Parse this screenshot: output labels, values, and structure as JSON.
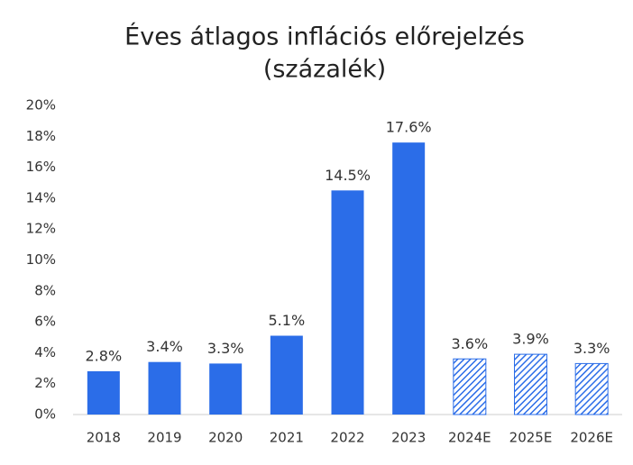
{
  "chart_data": {
    "type": "bar",
    "title": "Éves átlagos inflációs előrejelzés",
    "subtitle": "(százalék)",
    "categories": [
      "2018",
      "2019",
      "2020",
      "2021",
      "2022",
      "2023",
      "2024E",
      "2025E",
      "2026E"
    ],
    "values": [
      2.8,
      3.4,
      3.3,
      5.1,
      14.5,
      17.6,
      3.6,
      3.9,
      3.3
    ],
    "value_labels": [
      "2.8%",
      "3.4%",
      "3.3%",
      "5.1%",
      "14.5%",
      "17.6%",
      "3.6%",
      "3.9%",
      "3.3%"
    ],
    "hatched": [
      false,
      false,
      false,
      false,
      false,
      false,
      true,
      true,
      true
    ],
    "color": "#2b6de8",
    "ylim": [
      0,
      20
    ],
    "yticks": [
      {
        "value": 0,
        "label": "0%"
      },
      {
        "value": 2,
        "label": "2%"
      },
      {
        "value": 4,
        "label": "4%"
      },
      {
        "value": 6,
        "label": "6%"
      },
      {
        "value": 8,
        "label": "8%"
      },
      {
        "value": 10,
        "label": "10%"
      },
      {
        "value": 12,
        "label": "12%"
      },
      {
        "value": 14,
        "label": "14%"
      },
      {
        "value": 16,
        "label": "16%"
      },
      {
        "value": 18,
        "label": "18%"
      },
      {
        "value": 20,
        "label": "20%"
      }
    ],
    "grid": false
  }
}
